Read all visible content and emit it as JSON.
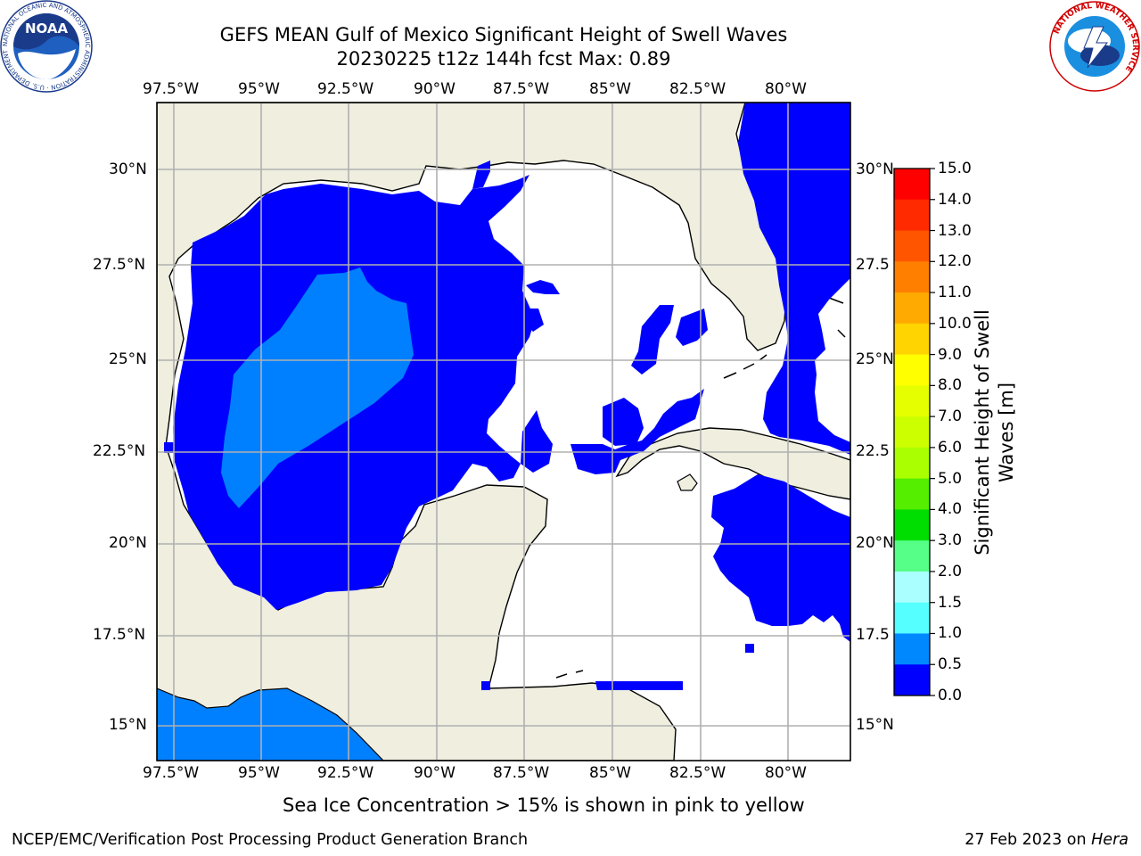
{
  "header": {
    "title_line1": "GEFS MEAN Gulf of Mexico Significant Height of Swell Waves",
    "title_line2": "20230225 t12z 144h fcst   Max: 0.89"
  },
  "axes": {
    "lon_labels": [
      "97.5°W",
      "95°W",
      "92.5°W",
      "90°W",
      "87.5°W",
      "85°W",
      "82.5°W",
      "80°W"
    ],
    "lat_labels_left": [
      "30°N",
      "27.5°N",
      "25°N",
      "22.5°N",
      "20°N",
      "17.5°N",
      "15°N"
    ],
    "lat_labels_right": [
      "30°N",
      "27.5",
      "25°N",
      "22.5",
      "20°N",
      "17.5",
      "15°N"
    ]
  },
  "colorbar": {
    "label": "Significant Height of Swell Waves [m]",
    "label_line1": "Significant Height of Swell",
    "label_line2": "Waves [m]",
    "ticks": [
      "15.0",
      "14.0",
      "13.0",
      "12.0",
      "11.0",
      "10.0",
      "9.0",
      "8.0",
      "7.0",
      "6.0",
      "5.0",
      "4.0",
      "3.0",
      "2.0",
      "1.5",
      "1.0",
      "0.5",
      "0.0"
    ],
    "colors": [
      "#ff0000",
      "#ff2a00",
      "#ff5500",
      "#ff8000",
      "#ffaa00",
      "#ffd400",
      "#ffff00",
      "#e6ff00",
      "#ccff00",
      "#aaff00",
      "#55ee00",
      "#00dd00",
      "#55ff88",
      "#aaffff",
      "#55ffff",
      "#00ffff",
      "#00ffff",
      "#0088ff",
      "#0000ff"
    ]
  },
  "legend_colors": {
    "land": "#efeedf",
    "swell_0_0_5": "#0000ff",
    "swell_0_5_1_0": "#0080ff",
    "grid": "#b0b0b0"
  },
  "footer": {
    "sea_ice_note": "Sea Ice Concentration > 15% is shown in pink to yellow",
    "credit": "NCEP/EMC/Verification Post Processing Product Generation Branch",
    "date_prefix": "27 Feb 2023 on ",
    "host": "Hera"
  },
  "logos": {
    "noaa_text": "NOAA",
    "noaa_ring_text": "NATIONAL OCEANIC AND ATMOSPHERIC ADMINISTRATION · U.S. DEPARTMENT OF COMMERCE",
    "nws_ring_text": "NATIONAL WEATHER SERVICE"
  }
}
